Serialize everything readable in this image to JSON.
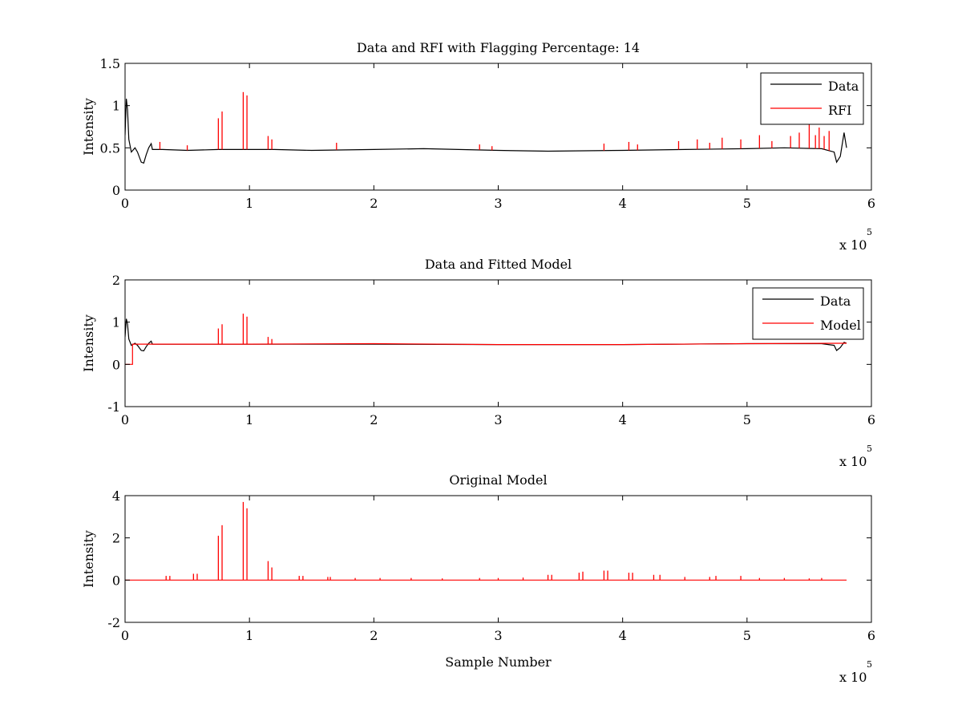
{
  "chart_data": [
    {
      "type": "line",
      "title": "Data and RFI with Flagging Percentage: 14",
      "xlabel": "",
      "ylabel": "Intensity",
      "xlim": [
        0,
        6
      ],
      "ylim": [
        0,
        1.5
      ],
      "x_multiplier_label": "x 10",
      "x_multiplier_exponent": "5",
      "xticks": [
        "0",
        "1",
        "2",
        "3",
        "4",
        "5",
        "6"
      ],
      "yticks": [
        "0",
        "0.5",
        "1",
        "1.5"
      ],
      "legend_position": "top-right",
      "colors": {
        "Data": "#000000",
        "RFI": "#ff0000"
      },
      "series": [
        {
          "name": "Data",
          "color": "#000000",
          "x": [
            0.0,
            0.01,
            0.02,
            0.03,
            0.05,
            0.08,
            0.1,
            0.13,
            0.15,
            0.17,
            0.19,
            0.21,
            0.22,
            0.25,
            0.3,
            0.5,
            0.75,
            0.95,
            1.0,
            1.2,
            1.5,
            2.0,
            2.4,
            3.0,
            3.4,
            4.0,
            4.5,
            5.0,
            5.3,
            5.6,
            5.7,
            5.72,
            5.75,
            5.78,
            5.8
          ],
          "y": [
            0.65,
            1.08,
            0.95,
            0.6,
            0.45,
            0.5,
            0.45,
            0.33,
            0.32,
            0.42,
            0.5,
            0.55,
            0.48,
            0.48,
            0.48,
            0.47,
            0.48,
            0.48,
            0.48,
            0.48,
            0.47,
            0.48,
            0.49,
            0.47,
            0.46,
            0.47,
            0.48,
            0.49,
            0.5,
            0.49,
            0.45,
            0.33,
            0.4,
            0.68,
            0.5
          ]
        },
        {
          "name": "RFI",
          "color": "#ff0000",
          "spikes": [
            {
              "x": 0.28,
              "y": 0.57
            },
            {
              "x": 0.5,
              "y": 0.53
            },
            {
              "x": 0.75,
              "y": 0.85
            },
            {
              "x": 0.78,
              "y": 0.93
            },
            {
              "x": 0.95,
              "y": 1.16
            },
            {
              "x": 0.98,
              "y": 1.12
            },
            {
              "x": 1.15,
              "y": 0.64
            },
            {
              "x": 1.18,
              "y": 0.6
            },
            {
              "x": 1.7,
              "y": 0.56
            },
            {
              "x": 2.85,
              "y": 0.54
            },
            {
              "x": 2.95,
              "y": 0.52
            },
            {
              "x": 3.85,
              "y": 0.55
            },
            {
              "x": 4.05,
              "y": 0.57
            },
            {
              "x": 4.12,
              "y": 0.54
            },
            {
              "x": 4.45,
              "y": 0.58
            },
            {
              "x": 4.6,
              "y": 0.6
            },
            {
              "x": 4.7,
              "y": 0.56
            },
            {
              "x": 4.8,
              "y": 0.62
            },
            {
              "x": 4.95,
              "y": 0.6
            },
            {
              "x": 5.1,
              "y": 0.65
            },
            {
              "x": 5.2,
              "y": 0.58
            },
            {
              "x": 5.35,
              "y": 0.64
            },
            {
              "x": 5.42,
              "y": 0.68
            },
            {
              "x": 5.5,
              "y": 0.78
            },
            {
              "x": 5.55,
              "y": 0.65
            },
            {
              "x": 5.58,
              "y": 0.74
            },
            {
              "x": 5.62,
              "y": 0.64
            },
            {
              "x": 5.66,
              "y": 0.7
            }
          ]
        }
      ]
    },
    {
      "type": "line",
      "title": "Data and Fitted Model",
      "xlabel": "",
      "ylabel": "Intensity",
      "xlim": [
        0,
        6
      ],
      "ylim": [
        -1,
        2
      ],
      "x_multiplier_label": "x 10",
      "x_multiplier_exponent": "5",
      "xticks": [
        "0",
        "1",
        "2",
        "3",
        "4",
        "5",
        "6"
      ],
      "yticks": [
        "-1",
        "0",
        "1",
        "2"
      ],
      "legend_position": "top-right",
      "colors": {
        "Data": "#000000",
        "Model": "#ff0000"
      },
      "series": [
        {
          "name": "Data",
          "color": "#000000",
          "x": [
            0.0,
            0.01,
            0.02,
            0.03,
            0.05,
            0.08,
            0.1,
            0.13,
            0.15,
            0.17,
            0.19,
            0.21,
            0.22,
            0.25,
            0.3,
            1.0,
            2.0,
            3.0,
            4.0,
            5.0,
            5.6,
            5.7,
            5.72,
            5.75,
            5.78,
            5.8
          ],
          "y": [
            0.65,
            1.08,
            0.95,
            0.6,
            0.45,
            0.5,
            0.45,
            0.33,
            0.32,
            0.42,
            0.5,
            0.55,
            0.48,
            0.48,
            0.48,
            0.48,
            0.48,
            0.47,
            0.47,
            0.49,
            0.49,
            0.45,
            0.33,
            0.4,
            0.52,
            0.5
          ]
        },
        {
          "name": "Model",
          "color": "#ff0000",
          "x": [
            0.0,
            0.06,
            0.06,
            1.0,
            2.0,
            3.0,
            4.0,
            5.0,
            5.8
          ],
          "y": [
            0.0,
            0.0,
            0.48,
            0.48,
            0.49,
            0.47,
            0.47,
            0.49,
            0.5
          ],
          "spikes": [
            {
              "x": 0.75,
              "y": 0.85
            },
            {
              "x": 0.78,
              "y": 0.95
            },
            {
              "x": 0.95,
              "y": 1.2
            },
            {
              "x": 0.98,
              "y": 1.13
            },
            {
              "x": 1.15,
              "y": 0.65
            },
            {
              "x": 1.18,
              "y": 0.6
            }
          ]
        }
      ]
    },
    {
      "type": "line",
      "title": "Original Model",
      "xlabel": "Sample Number",
      "ylabel": "Intensity",
      "xlim": [
        0,
        6
      ],
      "ylim": [
        -2,
        4
      ],
      "x_multiplier_label": "x 10",
      "x_multiplier_exponent": "5",
      "xticks": [
        "0",
        "1",
        "2",
        "3",
        "4",
        "5",
        "6"
      ],
      "yticks": [
        "-2",
        "0",
        "2",
        "4"
      ],
      "legend_position": "none",
      "colors": {
        "Model": "#ff0000"
      },
      "series": [
        {
          "color": "#ff0000",
          "x": [
            0.0,
            5.8
          ],
          "y": [
            0.0,
            0.0
          ],
          "spikes": [
            {
              "x": 0.33,
              "y": 0.2
            },
            {
              "x": 0.36,
              "y": 0.2
            },
            {
              "x": 0.55,
              "y": 0.3
            },
            {
              "x": 0.58,
              "y": 0.3
            },
            {
              "x": 0.75,
              "y": 2.1
            },
            {
              "x": 0.78,
              "y": 2.6
            },
            {
              "x": 0.95,
              "y": 3.7
            },
            {
              "x": 0.98,
              "y": 3.4
            },
            {
              "x": 1.15,
              "y": 0.9
            },
            {
              "x": 1.18,
              "y": 0.6
            },
            {
              "x": 1.4,
              "y": 0.2
            },
            {
              "x": 1.43,
              "y": 0.2
            },
            {
              "x": 1.63,
              "y": 0.15
            },
            {
              "x": 1.65,
              "y": 0.15
            },
            {
              "x": 1.85,
              "y": 0.1
            },
            {
              "x": 2.05,
              "y": 0.1
            },
            {
              "x": 2.3,
              "y": 0.1
            },
            {
              "x": 2.55,
              "y": 0.08
            },
            {
              "x": 2.85,
              "y": 0.1
            },
            {
              "x": 3.0,
              "y": 0.1
            },
            {
              "x": 3.2,
              "y": 0.12
            },
            {
              "x": 3.4,
              "y": 0.25
            },
            {
              "x": 3.43,
              "y": 0.25
            },
            {
              "x": 3.65,
              "y": 0.35
            },
            {
              "x": 3.68,
              "y": 0.4
            },
            {
              "x": 3.85,
              "y": 0.45
            },
            {
              "x": 3.88,
              "y": 0.45
            },
            {
              "x": 4.05,
              "y": 0.35
            },
            {
              "x": 4.08,
              "y": 0.35
            },
            {
              "x": 4.25,
              "y": 0.25
            },
            {
              "x": 4.3,
              "y": 0.25
            },
            {
              "x": 4.5,
              "y": 0.15
            },
            {
              "x": 4.7,
              "y": 0.15
            },
            {
              "x": 4.75,
              "y": 0.2
            },
            {
              "x": 4.95,
              "y": 0.2
            },
            {
              "x": 5.1,
              "y": 0.1
            },
            {
              "x": 5.3,
              "y": 0.1
            },
            {
              "x": 5.5,
              "y": 0.08
            },
            {
              "x": 5.6,
              "y": 0.1
            }
          ]
        }
      ]
    }
  ]
}
